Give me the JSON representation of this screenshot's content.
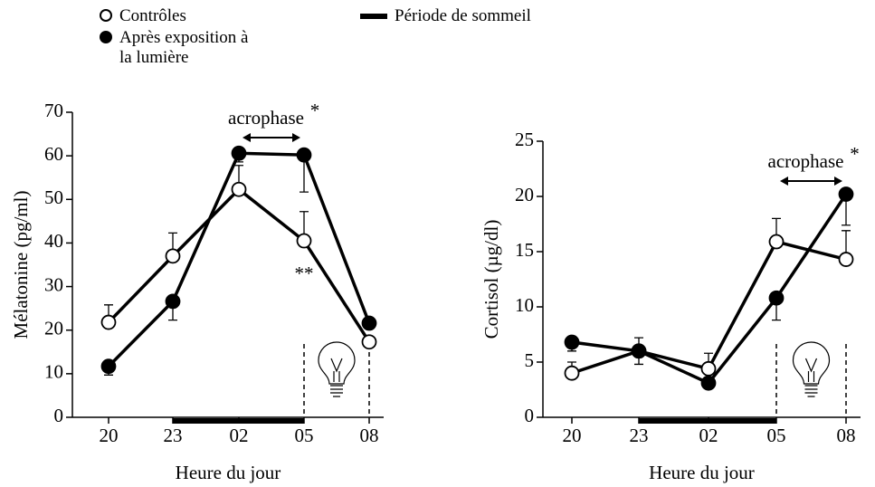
{
  "legend_sleep": "Période de sommeil",
  "chart_data": [
    {
      "type": "line",
      "xlabel": "Heure du jour",
      "ylabel": "Mélatonine (pg/ml)",
      "categories": [
        "20",
        "23",
        "02",
        "05",
        "08"
      ],
      "ylim": [
        0,
        70
      ],
      "yticks": [
        0,
        10,
        20,
        30,
        40,
        50,
        60,
        70
      ],
      "series": [
        {
          "name": "Contrôles",
          "color": "#000000",
          "marker_fill": "#ffffff",
          "values": [
            21.8,
            37,
            52.3,
            40.5,
            17.3
          ],
          "errors": [
            4,
            5.3,
            5.5,
            6.7,
            1
          ]
        },
        {
          "name": "Après exposition à la lumière",
          "color": "#000000",
          "marker_fill": "#000000",
          "values": [
            11.7,
            26.6,
            60.6,
            60.2,
            21.6
          ],
          "errors": [
            2,
            4.3,
            2,
            8.5,
            1
          ]
        }
      ],
      "annotations": {
        "acrophase": "acrophase",
        "star": "*",
        "significance": "**"
      }
    },
    {
      "type": "line",
      "xlabel": "Heure du jour",
      "ylabel": "Cortisol (µg/dl)",
      "categories": [
        "20",
        "23",
        "02",
        "05",
        "08"
      ],
      "ylim": [
        0,
        25
      ],
      "yticks": [
        0,
        5,
        10,
        15,
        20,
        25
      ],
      "series": [
        {
          "color": "#000000",
          "marker_fill": "#ffffff",
          "values": [
            4.0,
            6.0,
            4.4,
            15.9,
            14.3
          ],
          "errors": [
            1.0,
            1.2,
            1.4,
            2.1,
            2.6
          ]
        },
        {
          "color": "#000000",
          "marker_fill": "#000000",
          "values": [
            6.8,
            6.0,
            3.1,
            10.8,
            20.2
          ],
          "errors": [
            0.8,
            1.2,
            0.3,
            2.0,
            2.8
          ]
        }
      ],
      "annotations": {
        "acrophase": "acrophase",
        "star": "*"
      }
    }
  ]
}
